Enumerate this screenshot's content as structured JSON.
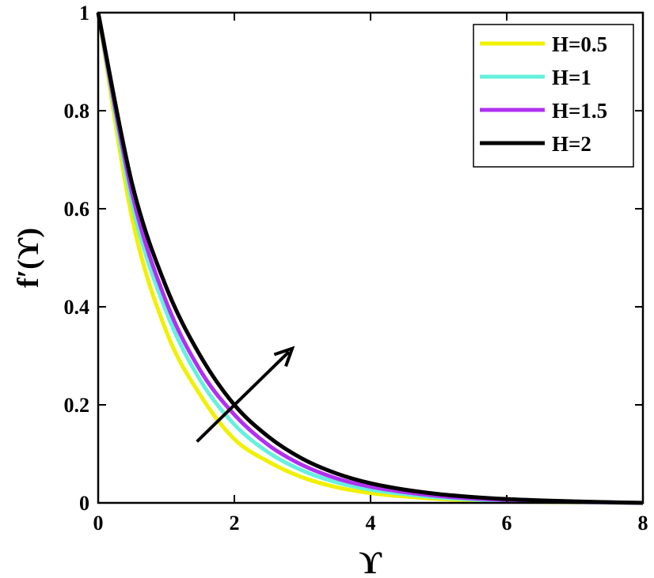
{
  "chart_data": {
    "type": "line",
    "xlabel": "ϒ",
    "ylabel": "f′(ϒ)",
    "xlim": [
      0,
      8
    ],
    "ylim": [
      0,
      1
    ],
    "x_ticks": [
      "0",
      "2",
      "4",
      "6",
      "8"
    ],
    "y_ticks": [
      "0",
      "0.2",
      "0.4",
      "0.6",
      "0.8",
      "1"
    ],
    "grid": false,
    "legend_position": "top-right",
    "x": [
      0,
      0.5,
      1,
      1.5,
      2,
      2.5,
      3,
      3.5,
      4,
      4.5,
      5,
      5.5,
      6,
      6.5,
      7,
      7.5,
      8
    ],
    "series": [
      {
        "name": "H=0.5",
        "color": "#f0f000",
        "values": [
          1.0,
          0.58,
          0.35,
          0.22,
          0.13,
          0.084,
          0.052,
          0.032,
          0.02,
          0.013,
          0.008,
          0.005,
          0.003,
          0.002,
          0.001,
          0.0005,
          0.0
        ]
      },
      {
        "name": "H=1",
        "color": "#66f0dd",
        "values": [
          1.0,
          0.61,
          0.39,
          0.25,
          0.16,
          0.103,
          0.066,
          0.042,
          0.027,
          0.018,
          0.011,
          0.007,
          0.0045,
          0.0028,
          0.0015,
          0.0007,
          0.0
        ]
      },
      {
        "name": "H=1.5",
        "color": "#b030f0",
        "values": [
          1.0,
          0.63,
          0.41,
          0.27,
          0.18,
          0.118,
          0.077,
          0.05,
          0.033,
          0.022,
          0.014,
          0.009,
          0.006,
          0.0037,
          0.002,
          0.001,
          0.0
        ]
      },
      {
        "name": "H=2",
        "color": "#000000",
        "values": [
          1.0,
          0.65,
          0.44,
          0.3,
          0.2,
          0.135,
          0.09,
          0.06,
          0.04,
          0.027,
          0.018,
          0.012,
          0.0078,
          0.005,
          0.003,
          0.0014,
          0.0
        ]
      }
    ],
    "annotation": {
      "type": "arrow",
      "meaning": "increasing H",
      "from": [
        1.45,
        0.125
      ],
      "to": [
        2.85,
        0.315
      ],
      "color": "#000000"
    }
  }
}
